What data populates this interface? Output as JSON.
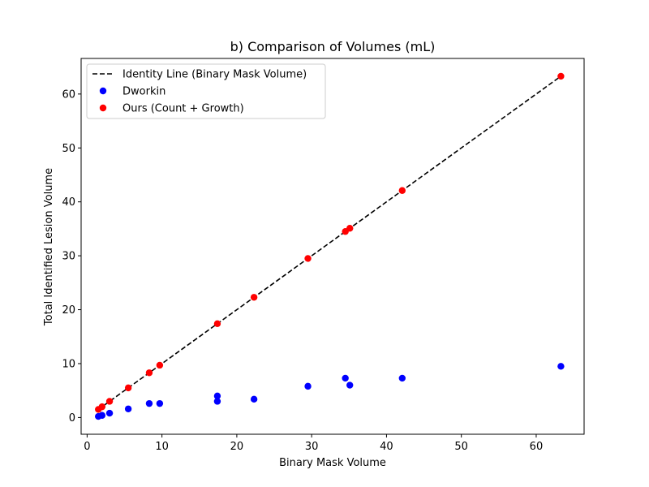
{
  "chart_data": {
    "type": "scatter",
    "title": "b) Comparison of Volumes (mL)",
    "xlabel": "Binary Mask Volume",
    "ylabel": "Total Identified Lesion Volume",
    "xlim": [
      -0.8,
      66.4
    ],
    "ylim": [
      -3.1,
      66.6
    ],
    "xticks": [
      0,
      10,
      20,
      30,
      40,
      50,
      60
    ],
    "yticks": [
      0,
      10,
      20,
      30,
      40,
      50,
      60
    ],
    "grid": false,
    "legend_position": "top-left",
    "series": [
      {
        "name": "Identity Line (Binary Mask Volume)",
        "kind": "line",
        "style": "dashed",
        "color": "#000000",
        "x": [
          1.5,
          2.0,
          3.0,
          5.5,
          8.3,
          9.7,
          17.4,
          22.3,
          29.5,
          34.5,
          35.1,
          42.1,
          63.3
        ],
        "y": [
          1.5,
          2.0,
          3.0,
          5.5,
          8.3,
          9.7,
          17.4,
          22.3,
          29.5,
          34.5,
          35.1,
          42.1,
          63.3
        ]
      },
      {
        "name": "Dworkin",
        "kind": "scatter",
        "color": "#0000ff",
        "x": [
          1.5,
          2.0,
          3.0,
          5.5,
          8.3,
          9.7,
          17.4,
          17.4,
          22.3,
          29.5,
          34.5,
          35.1,
          42.1,
          63.3
        ],
        "y": [
          0.2,
          0.4,
          0.8,
          1.6,
          2.6,
          2.6,
          4.0,
          3.0,
          3.4,
          5.8,
          7.3,
          6.0,
          7.3,
          9.5
        ]
      },
      {
        "name": "Ours (Count + Growth)",
        "kind": "scatter",
        "color": "#ff0000",
        "x": [
          1.5,
          2.0,
          3.0,
          5.5,
          8.3,
          9.7,
          17.4,
          22.3,
          29.5,
          34.5,
          35.1,
          42.1,
          63.3
        ],
        "y": [
          1.5,
          2.0,
          3.0,
          5.5,
          8.3,
          9.7,
          17.4,
          22.3,
          29.5,
          34.5,
          35.1,
          42.1,
          63.3
        ]
      }
    ]
  }
}
